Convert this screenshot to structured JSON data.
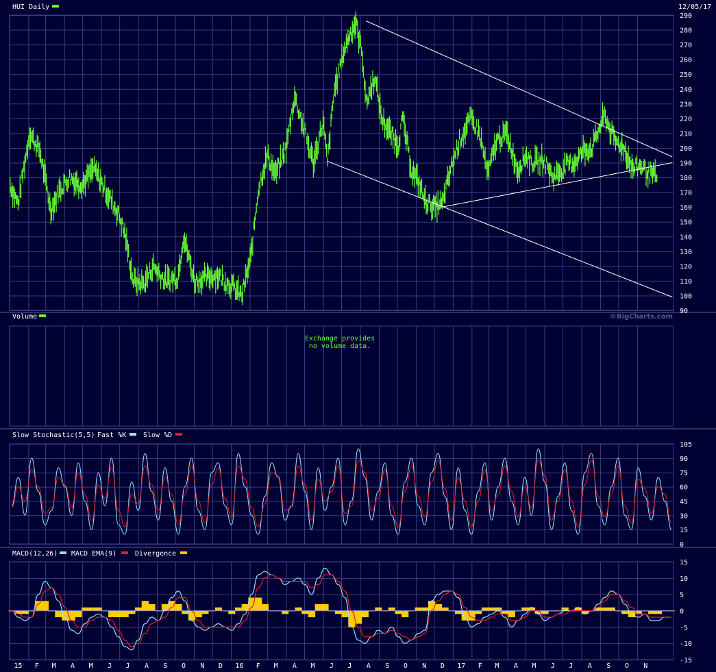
{
  "colors": {
    "background": "#000033",
    "grid": "#3a3f85",
    "price": "#66ff33",
    "fast_k": "#99ddff",
    "slow_d": "#dd2222",
    "macd": "#99ddff",
    "macd_ema": "#dd2222",
    "divergence": "#ffcc00",
    "trendline": "#ffffff"
  },
  "date_label": "12/05/17",
  "credit": "©BigCharts.com",
  "x_axis": {
    "months": [
      "15",
      "F",
      "M",
      "A",
      "M",
      "J",
      "J",
      "A",
      "S",
      "O",
      "N",
      "D",
      "16",
      "F",
      "M",
      "A",
      "M",
      "J",
      "J",
      "A",
      "S",
      "O",
      "N",
      "D",
      "17",
      "F",
      "M",
      "A",
      "M",
      "J",
      "J",
      "A",
      "S",
      "O",
      "N"
    ]
  },
  "price_panel": {
    "title": "HUI Daily",
    "ylim": [
      90,
      290
    ],
    "y_ticks": [
      90,
      100,
      110,
      120,
      130,
      140,
      150,
      160,
      170,
      180,
      190,
      200,
      210,
      220,
      230,
      240,
      250,
      260,
      270,
      280,
      290
    ],
    "trendlines": [
      {
        "from": [
          "2016-08-11",
          286
        ],
        "to": [
          "2017-12-29",
          194
        ]
      },
      {
        "from": [
          "2016-06-08",
          191
        ],
        "to": [
          "2017-12-29",
          99
        ]
      },
      {
        "from": [
          "2016-12-15",
          160
        ],
        "to": [
          "2017-12-29",
          190
        ]
      }
    ]
  },
  "volume_panel": {
    "title": "Volume",
    "message_lines": [
      "Exchange provides",
      "no volume data."
    ]
  },
  "stoch_panel": {
    "title": "Slow Stochastic(5,5)",
    "fast_label": "Fast %K",
    "slow_label": "Slow %D",
    "ylim": [
      0,
      105
    ],
    "y_ticks": [
      0,
      15,
      30,
      45,
      60,
      75,
      90,
      105
    ]
  },
  "macd_panel": {
    "title": "MACD(12,26)",
    "ema_label": "MACD EMA(9)",
    "div_label": "Divergence",
    "ylim": [
      -15,
      15
    ],
    "y_ticks": [
      -15,
      -10,
      -5,
      0,
      5,
      10,
      15
    ]
  },
  "chart_data": {
    "type": "line",
    "title": "HUI Daily",
    "end_date": "12/05/17",
    "price_series": {
      "name": "HUI Daily",
      "x": [
        "2015-01-02",
        "2015-01-15",
        "2015-02-03",
        "2015-02-20",
        "2015-03-10",
        "2015-03-25",
        "2015-04-10",
        "2015-05-01",
        "2015-05-20",
        "2015-06-10",
        "2015-06-30",
        "2015-07-10",
        "2015-07-24",
        "2015-08-10",
        "2015-08-26",
        "2015-09-15",
        "2015-10-05",
        "2015-10-15",
        "2015-11-02",
        "2015-11-20",
        "2015-12-10",
        "2016-01-04",
        "2016-01-19",
        "2016-02-03",
        "2016-02-15",
        "2016-03-01",
        "2016-03-15",
        "2016-04-01",
        "2016-04-15",
        "2016-04-29",
        "2016-05-16",
        "2016-06-01",
        "2016-06-08",
        "2016-06-20",
        "2016-07-05",
        "2016-07-15",
        "2016-07-25",
        "2016-08-05",
        "2016-08-11",
        "2016-08-25",
        "2016-09-06",
        "2016-09-20",
        "2016-10-03",
        "2016-10-10",
        "2016-10-25",
        "2016-11-08",
        "2016-11-15",
        "2016-11-30",
        "2016-12-15",
        "2016-12-28",
        "2017-01-12",
        "2017-01-31",
        "2017-02-14",
        "2017-02-28",
        "2017-03-14",
        "2017-03-31",
        "2017-04-18",
        "2017-05-01",
        "2017-05-12",
        "2017-05-31",
        "2017-06-15",
        "2017-07-07",
        "2017-07-20",
        "2017-08-04",
        "2017-08-18",
        "2017-09-08",
        "2017-09-25",
        "2017-10-10",
        "2017-10-25",
        "2017-11-08",
        "2017-11-22",
        "2017-12-05"
      ],
      "y": [
        175,
        162,
        210,
        198,
        158,
        172,
        180,
        175,
        186,
        170,
        155,
        142,
        110,
        108,
        120,
        110,
        112,
        140,
        110,
        112,
        114,
        106,
        100,
        126,
        172,
        195,
        182,
        200,
        235,
        215,
        190,
        218,
        190,
        240,
        265,
        277,
        285,
        262,
        230,
        248,
        220,
        210,
        202,
        220,
        185,
        175,
        165,
        160,
        162,
        185,
        205,
        220,
        210,
        182,
        205,
        210,
        185,
        195,
        190,
        192,
        180,
        188,
        190,
        198,
        200,
        222,
        205,
        200,
        186,
        188,
        182,
        180
      ]
    },
    "volume_series": {
      "name": "Volume",
      "values": []
    },
    "stochastic_series": [
      {
        "name": "Fast %K",
        "values": [
          40,
          70,
          30,
          90,
          55,
          20,
          35,
          80,
          60,
          30,
          85,
          45,
          15,
          75,
          40,
          90,
          20,
          10,
          65,
          35,
          95,
          55,
          25,
          80,
          45,
          10,
          60,
          90,
          35,
          15,
          75,
          85,
          40,
          20,
          95,
          60,
          30,
          10,
          50,
          85,
          70,
          25,
          40,
          95,
          55,
          15,
          80,
          35,
          60,
          90,
          20,
          45,
          100,
          70,
          25,
          55,
          85,
          30,
          10,
          65,
          90,
          40,
          20,
          75,
          95,
          50,
          15,
          80,
          35,
          10,
          55,
          85,
          25,
          60,
          90,
          45,
          20,
          70,
          30,
          100,
          65,
          15,
          50,
          85,
          35,
          10,
          75,
          95,
          40,
          20,
          60,
          90,
          30,
          15,
          80,
          50,
          25,
          70,
          45,
          15
        ]
      },
      {
        "name": "Slow %D",
        "values": [
          38,
          60,
          45,
          78,
          60,
          32,
          38,
          70,
          62,
          38,
          75,
          52,
          24,
          62,
          48,
          80,
          35,
          18,
          52,
          42,
          82,
          62,
          35,
          70,
          52,
          20,
          52,
          82,
          45,
          22,
          62,
          80,
          48,
          28,
          82,
          68,
          38,
          18,
          42,
          75,
          72,
          35,
          38,
          82,
          62,
          25,
          68,
          45,
          55,
          82,
          32,
          40,
          88,
          75,
          35,
          48,
          78,
          40,
          18,
          55,
          82,
          50,
          28,
          65,
          88,
          58,
          25,
          70,
          45,
          18,
          45,
          78,
          35,
          52,
          82,
          55,
          28,
          60,
          38,
          88,
          72,
          25,
          45,
          78,
          45,
          18,
          62,
          88,
          50,
          28,
          52,
          82,
          40,
          22,
          68,
          58,
          32,
          60,
          52,
          22
        ]
      }
    ],
    "macd_series": [
      {
        "name": "MACD(12,26)",
        "values": [
          0,
          -2,
          -3,
          -2,
          5,
          9,
          7,
          3,
          -2,
          -6,
          -7,
          -4,
          -2,
          -1,
          -2,
          -5,
          -8,
          -11,
          -12,
          -9,
          -4,
          -2,
          -3,
          0,
          4,
          6,
          3,
          -3,
          -5,
          -6,
          -5,
          -4,
          -5,
          -6,
          -4,
          -1,
          5,
          11,
          12,
          11,
          10,
          8,
          9,
          10,
          8,
          5,
          10,
          13,
          11,
          8,
          4,
          -5,
          -9,
          -10,
          -8,
          -6,
          -7,
          -5,
          -8,
          -10,
          -9,
          -7,
          -6,
          3,
          5,
          6,
          6,
          4,
          -2,
          -5,
          -4,
          -2,
          -1,
          0,
          -2,
          -5,
          -3,
          -1,
          1,
          -1,
          -3,
          -2,
          -1,
          0,
          0,
          1,
          -1,
          0,
          2,
          4,
          6,
          5,
          2,
          -1,
          -2,
          -1,
          -3,
          -3,
          -2,
          -2
        ]
      },
      {
        "name": "MACD EMA(9)",
        "values": [
          0,
          -1,
          -2,
          -2,
          2,
          6,
          7,
          5,
          1,
          -3,
          -5,
          -5,
          -3,
          -2,
          -2,
          -3,
          -6,
          -9,
          -11,
          -10,
          -7,
          -4,
          -3,
          -2,
          1,
          4,
          4,
          0,
          -3,
          -5,
          -5,
          -5,
          -5,
          -5,
          -5,
          -3,
          1,
          7,
          10,
          11,
          10,
          9,
          9,
          9,
          9,
          7,
          8,
          11,
          11,
          9,
          6,
          0,
          -5,
          -8,
          -8,
          -7,
          -7,
          -6,
          -7,
          -8,
          -9,
          -8,
          -7,
          0,
          3,
          5,
          6,
          5,
          1,
          -2,
          -3,
          -3,
          -2,
          -1,
          -1,
          -3,
          -3,
          -2,
          0,
          0,
          -2,
          -2,
          -1,
          -1,
          0,
          0,
          0,
          0,
          1,
          3,
          5,
          5,
          3,
          1,
          -1,
          -1,
          -2,
          -2,
          -2,
          -2
        ]
      },
      {
        "name": "Divergence",
        "values": [
          0,
          -1,
          -1,
          0,
          3,
          3,
          0,
          -2,
          -3,
          -3,
          -2,
          1,
          1,
          1,
          0,
          -2,
          -2,
          -2,
          -1,
          1,
          3,
          2,
          0,
          2,
          3,
          2,
          -1,
          -3,
          -2,
          -1,
          0,
          1,
          0,
          -1,
          1,
          2,
          4,
          4,
          2,
          0,
          0,
          -1,
          0,
          1,
          -1,
          -2,
          2,
          2,
          0,
          -1,
          -2,
          -5,
          -4,
          -2,
          0,
          1,
          0,
          1,
          -1,
          -2,
          0,
          1,
          1,
          3,
          2,
          1,
          0,
          -1,
          -3,
          -3,
          -1,
          1,
          1,
          1,
          -1,
          -2,
          0,
          1,
          1,
          -1,
          -1,
          0,
          0,
          1,
          0,
          1,
          -1,
          0,
          1,
          1,
          1,
          0,
          -1,
          -2,
          -1,
          0,
          -1,
          -1,
          0,
          0
        ]
      }
    ]
  }
}
